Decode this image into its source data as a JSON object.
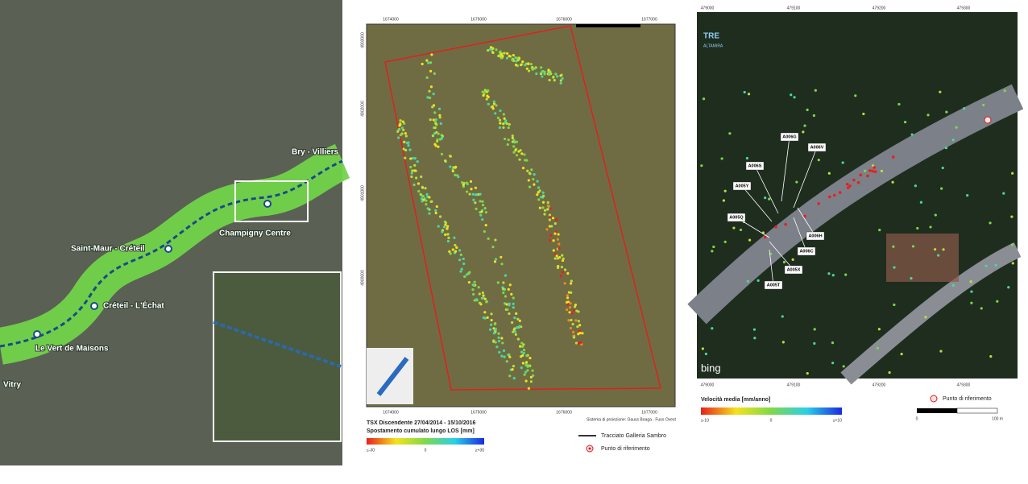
{
  "panel_1": {
    "stations": [
      "Bry - Villiers",
      "Champigny Centre",
      "Saint-Maur - Créteil",
      "Créteil - L'Échat",
      "Le Vert de Maisons",
      "Vitry"
    ]
  },
  "panel_2": {
    "x_axis": [
      "1674000",
      "1675000",
      "1676000",
      "1677000"
    ],
    "y_axis": [
      "4903000",
      "4902000",
      "4901000",
      "4900000"
    ],
    "legend_title": "TSX Discendente 27/04/2014 - 15/10/2016",
    "legend_subtitle": "Spostamento cumulato lungo LOS [mm]",
    "scale_labels": [
      "≤-30",
      "0",
      "≥+30"
    ],
    "projection": "Sistema di proiezione: Gauss Boaga - Fuso Ovest",
    "key": [
      "Tracciato Galleria Sambro",
      "Punto di riferimento"
    ]
  },
  "panel_3": {
    "logo": [
      "TRE",
      "ALTAMIRA"
    ],
    "basemap": "bing",
    "x_axis": [
      "479000",
      "479100",
      "479200",
      "479300"
    ],
    "points": [
      "A006G",
      "A006V",
      "A006S",
      "A005Y",
      "A005Q",
      "A006H",
      "A006C",
      "A005X",
      "A005T"
    ],
    "legend_title": "Velocità media [mm/anno]",
    "scale_labels": [
      "≤-10",
      "0",
      "≥+10"
    ],
    "key": "Punto di riferimento",
    "scalebar": [
      "0",
      "100 m"
    ]
  }
}
